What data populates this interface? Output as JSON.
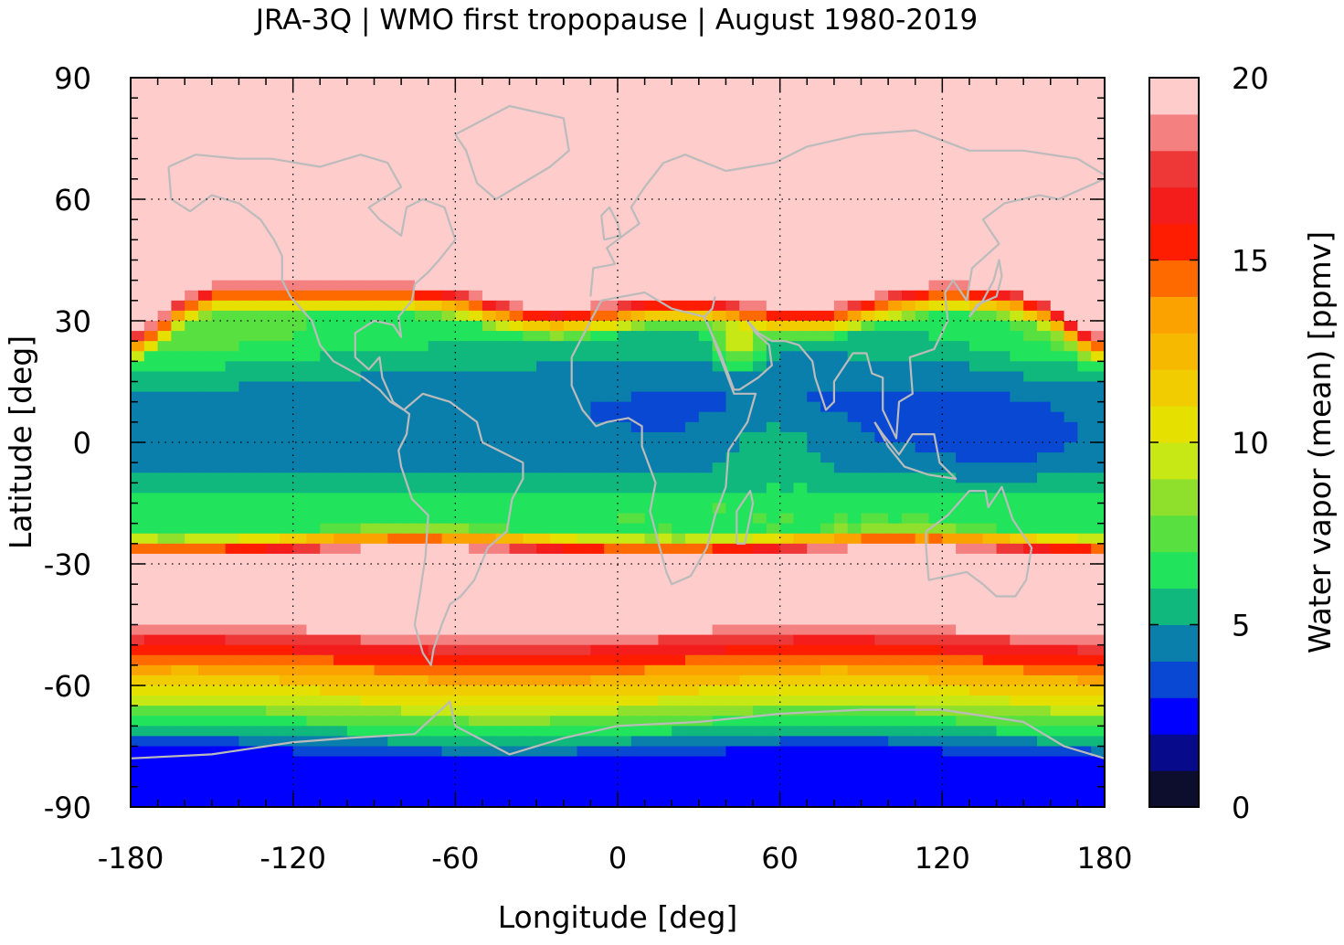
{
  "chart_data": {
    "type": "heatmap",
    "title": "JRA-3Q | WMO first tropopause | August 1980-2019",
    "xlabel": "Longitude [deg]",
    "ylabel": "Latitude [deg]",
    "xlim": [
      -180,
      180
    ],
    "ylim": [
      -90,
      90
    ],
    "x_ticks": [
      -180,
      -120,
      -60,
      0,
      60,
      120,
      180
    ],
    "y_ticks": [
      90,
      60,
      30,
      0,
      -30,
      -60,
      -90
    ],
    "x_tick_labels": [
      "-180",
      "-120",
      "-60",
      "0",
      "60",
      "120",
      "180"
    ],
    "y_tick_labels": [
      "90",
      "60",
      "30",
      "0",
      "-30",
      "-60",
      "-90"
    ],
    "grid": true,
    "colorbar": {
      "label": "Water vapor (mean) [ppmv]",
      "range": [
        0,
        20
      ],
      "ticks": [
        0,
        5,
        10,
        15,
        20
      ],
      "tick_labels": [
        "0",
        "5",
        "10",
        "15",
        "20"
      ],
      "levels": [
        {
          "from": 0,
          "to": 1,
          "color": "#0d0d2e"
        },
        {
          "from": 1,
          "to": 2,
          "color": "#080a8c"
        },
        {
          "from": 2,
          "to": 3,
          "color": "#0000ff"
        },
        {
          "from": 3,
          "to": 4,
          "color": "#0848d2"
        },
        {
          "from": 4,
          "to": 5,
          "color": "#0a7fab"
        },
        {
          "from": 5,
          "to": 6,
          "color": "#10b87d"
        },
        {
          "from": 6,
          "to": 7,
          "color": "#22e35c"
        },
        {
          "from": 7,
          "to": 8,
          "color": "#58e040"
        },
        {
          "from": 8,
          "to": 9,
          "color": "#8fe02c"
        },
        {
          "from": 9,
          "to": 10,
          "color": "#c8e815"
        },
        {
          "from": 10,
          "to": 11,
          "color": "#e6e000"
        },
        {
          "from": 11,
          "to": 12,
          "color": "#f0cc00"
        },
        {
          "from": 12,
          "to": 13,
          "color": "#f7b800"
        },
        {
          "from": 13,
          "to": 14,
          "color": "#fca200"
        },
        {
          "from": 14,
          "to": 15,
          "color": "#ff6a00"
        },
        {
          "from": 15,
          "to": 16,
          "color": "#ff1d00"
        },
        {
          "from": 16,
          "to": 17,
          "color": "#f51c1c"
        },
        {
          "from": 17,
          "to": 18,
          "color": "#ee3838"
        },
        {
          "from": 18,
          "to": 19,
          "color": "#f58080"
        },
        {
          "from": 19,
          "to": 20,
          "color": "#ffcccc"
        }
      ]
    },
    "coastline_color": "#bbbbbb"
  }
}
